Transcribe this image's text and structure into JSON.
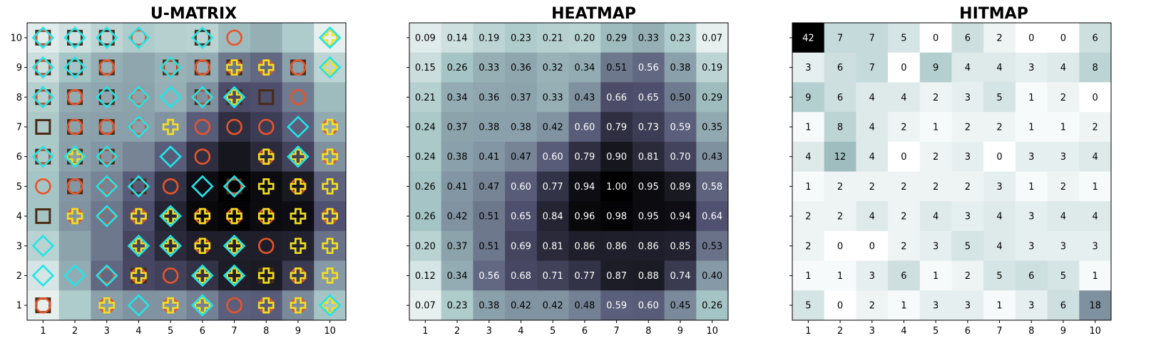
{
  "chart_data": [
    {
      "type": "heatmap",
      "title": "U-MATRIX",
      "x": [
        1,
        2,
        3,
        4,
        5,
        6,
        7,
        8,
        9,
        10
      ],
      "y": [
        1,
        2,
        3,
        4,
        5,
        6,
        7,
        8,
        9,
        10
      ],
      "colormap": "bone_r",
      "values_top_to_bottom": [
        [
          0.09,
          0.14,
          0.19,
          0.23,
          0.21,
          0.2,
          0.29,
          0.33,
          0.23,
          0.07
        ],
        [
          0.15,
          0.26,
          0.33,
          0.36,
          0.32,
          0.34,
          0.51,
          0.56,
          0.38,
          0.19
        ],
        [
          0.21,
          0.34,
          0.36,
          0.37,
          0.33,
          0.43,
          0.66,
          0.65,
          0.5,
          0.29
        ],
        [
          0.24,
          0.37,
          0.38,
          0.38,
          0.42,
          0.6,
          0.79,
          0.73,
          0.59,
          0.35
        ],
        [
          0.24,
          0.38,
          0.41,
          0.47,
          0.6,
          0.79,
          0.9,
          0.81,
          0.7,
          0.43
        ],
        [
          0.26,
          0.41,
          0.47,
          0.6,
          0.77,
          0.94,
          1.0,
          0.95,
          0.89,
          0.58
        ],
        [
          0.26,
          0.42,
          0.51,
          0.65,
          0.84,
          0.96,
          0.98,
          0.95,
          0.94,
          0.64
        ],
        [
          0.2,
          0.37,
          0.51,
          0.69,
          0.81,
          0.86,
          0.86,
          0.86,
          0.85,
          0.53
        ],
        [
          0.12,
          0.34,
          0.56,
          0.68,
          0.71,
          0.77,
          0.87,
          0.88,
          0.74,
          0.4
        ],
        [
          0.07,
          0.23,
          0.38,
          0.42,
          0.42,
          0.48,
          0.59,
          0.6,
          0.45,
          0.26
        ]
      ],
      "marker_types": {
        "s": {
          "shape": "square",
          "color": "#4a2a14"
        },
        "o": {
          "shape": "circle",
          "color": "#e8542a"
        },
        "d": {
          "shape": "diamond",
          "color": "#22e4e8"
        },
        "p": {
          "shape": "plus",
          "color": "#f5e020"
        }
      },
      "markers_top_to_bottom": [
        [
          "sod",
          "sd",
          "sd",
          "od",
          "",
          "osd",
          "o",
          "",
          "",
          "opd"
        ],
        [
          "sod",
          "sd",
          "so",
          "",
          "sod",
          "so",
          "sop",
          "op",
          "so",
          "opd"
        ],
        [
          "sod",
          "so",
          "sd",
          "od",
          "d",
          "sod",
          "sopd",
          "s",
          "o",
          ""
        ],
        [
          "s",
          "so",
          "so",
          "od",
          "p",
          "o",
          "o",
          "o",
          "d",
          "op"
        ],
        [
          "sod",
          "sopd",
          "sod",
          "",
          "d",
          "o",
          "",
          "op",
          "opd",
          "op"
        ],
        [
          "o",
          "so",
          "od",
          "sd",
          "o",
          "d",
          "sod",
          "p",
          "op",
          "p"
        ],
        [
          "s",
          "op",
          "od",
          "op",
          "opd",
          "op",
          "op",
          "op",
          "p",
          "op"
        ],
        [
          "d",
          "",
          "",
          "opd",
          "opd",
          "op",
          "opd",
          "o",
          "p",
          "p"
        ],
        [
          "d",
          "d",
          "od",
          "sop",
          "o",
          "opd",
          "pd",
          "sp",
          "op",
          "p"
        ],
        [
          "so",
          "",
          "op",
          "d",
          "op",
          "opd",
          "o",
          "op",
          "op",
          "opd"
        ]
      ]
    },
    {
      "type": "heatmap",
      "title": "HEATMAP",
      "x": [
        1,
        2,
        3,
        4,
        5,
        6,
        7,
        8,
        9,
        10
      ],
      "y": [
        1,
        2,
        3,
        4,
        5,
        6,
        7,
        8,
        9,
        10
      ],
      "colormap": "bone_r",
      "values_top_to_bottom": [
        [
          0.09,
          0.14,
          0.19,
          0.23,
          0.21,
          0.2,
          0.29,
          0.33,
          0.23,
          0.07
        ],
        [
          0.15,
          0.26,
          0.33,
          0.36,
          0.32,
          0.34,
          0.51,
          0.56,
          0.38,
          0.19
        ],
        [
          0.21,
          0.34,
          0.36,
          0.37,
          0.33,
          0.43,
          0.66,
          0.65,
          0.5,
          0.29
        ],
        [
          0.24,
          0.37,
          0.38,
          0.38,
          0.42,
          0.6,
          0.79,
          0.73,
          0.59,
          0.35
        ],
        [
          0.24,
          0.38,
          0.41,
          0.47,
          0.6,
          0.79,
          0.9,
          0.81,
          0.7,
          0.43
        ],
        [
          0.26,
          0.41,
          0.47,
          0.6,
          0.77,
          0.94,
          1.0,
          0.95,
          0.89,
          0.58
        ],
        [
          0.26,
          0.42,
          0.51,
          0.65,
          0.84,
          0.96,
          0.98,
          0.95,
          0.94,
          0.64
        ],
        [
          0.2,
          0.37,
          0.51,
          0.69,
          0.81,
          0.86,
          0.86,
          0.86,
          0.85,
          0.53
        ],
        [
          0.12,
          0.34,
          0.56,
          0.68,
          0.71,
          0.77,
          0.87,
          0.88,
          0.74,
          0.4
        ],
        [
          0.07,
          0.23,
          0.38,
          0.42,
          0.42,
          0.48,
          0.59,
          0.6,
          0.45,
          0.26
        ]
      ],
      "cell_labels": [
        "0.09",
        "0.14",
        "0.19",
        "0.23",
        "0.21",
        "0.20",
        "0.29",
        "0.33",
        "0.23",
        "0.07",
        "0.15",
        "0.26",
        "0.33",
        "0.36",
        "0.32",
        "0.34",
        "0.51",
        "0.56",
        "0.38",
        "0.19",
        "0.21",
        "0.34",
        "0.36",
        "0.37",
        "0.33",
        "0.43",
        "0.66",
        "0.65",
        "0.50",
        "0.29",
        "0.24",
        "0.37",
        "0.38",
        "0.38",
        "0.42",
        "0.60",
        "0.79",
        "0.73",
        "0.59",
        "0.35",
        "0.24",
        "0.38",
        "0.41",
        "0.47",
        "0.60",
        "0.79",
        "0.90",
        "0.81",
        "0.70",
        "0.43",
        "0.26",
        "0.41",
        "0.47",
        "0.60",
        "0.77",
        "0.94",
        "1.00",
        "0.95",
        "0.89",
        "0.58",
        "0.26",
        "0.42",
        "0.51",
        "0.65",
        "0.84",
        "0.96",
        "0.98",
        "0.95",
        "0.94",
        "0.64",
        "0.20",
        "0.37",
        "0.51",
        "0.69",
        "0.81",
        "0.86",
        "0.86",
        "0.86",
        "0.85",
        "0.53",
        "0.12",
        "0.34",
        "0.56",
        "0.68",
        "0.71",
        "0.77",
        "0.87",
        "0.88",
        "0.74",
        "0.40",
        "0.07",
        "0.23",
        "0.38",
        "0.42",
        "0.42",
        "0.48",
        "0.59",
        "0.60",
        "0.45",
        "0.26"
      ]
    },
    {
      "type": "heatmap",
      "title": "HITMAP",
      "x": [
        1,
        2,
        3,
        4,
        5,
        6,
        7,
        8,
        9,
        10
      ],
      "y": [
        1,
        2,
        3,
        4,
        5,
        6,
        7,
        8,
        9,
        10
      ],
      "colormap": "bone_r",
      "values_top_to_bottom": [
        [
          42,
          7,
          7,
          5,
          0,
          6,
          2,
          0,
          0,
          6
        ],
        [
          3,
          6,
          7,
          0,
          9,
          4,
          4,
          3,
          4,
          8
        ],
        [
          9,
          6,
          4,
          4,
          2,
          3,
          5,
          1,
          2,
          0
        ],
        [
          1,
          8,
          4,
          2,
          1,
          2,
          2,
          1,
          1,
          2
        ],
        [
          4,
          12,
          4,
          0,
          2,
          3,
          0,
          3,
          3,
          4
        ],
        [
          1,
          2,
          2,
          2,
          2,
          2,
          3,
          1,
          2,
          1
        ],
        [
          2,
          2,
          4,
          2,
          4,
          3,
          4,
          3,
          4,
          4
        ],
        [
          2,
          0,
          0,
          2,
          3,
          5,
          4,
          3,
          3,
          3
        ],
        [
          1,
          1,
          3,
          6,
          1,
          2,
          5,
          6,
          5,
          1
        ],
        [
          5,
          0,
          2,
          1,
          3,
          3,
          1,
          3,
          6,
          18
        ]
      ],
      "cell_labels": [
        "42",
        "7",
        "7",
        "5",
        "0",
        "6",
        "2",
        "0",
        "0",
        "6",
        "3",
        "6",
        "7",
        "0",
        "9",
        "4",
        "4",
        "3",
        "4",
        "8",
        "9",
        "6",
        "4",
        "4",
        "2",
        "3",
        "5",
        "1",
        "2",
        "0",
        "1",
        "8",
        "4",
        "2",
        "1",
        "2",
        "2",
        "1",
        "1",
        "2",
        "4",
        "12",
        "4",
        "0",
        "2",
        "3",
        "0",
        "3",
        "3",
        "4",
        "1",
        "2",
        "2",
        "2",
        "2",
        "2",
        "3",
        "1",
        "2",
        "1",
        "2",
        "2",
        "4",
        "2",
        "4",
        "3",
        "4",
        "3",
        "4",
        "4",
        "2",
        "0",
        "0",
        "2",
        "3",
        "5",
        "4",
        "3",
        "3",
        "3",
        "1",
        "1",
        "3",
        "6",
        "1",
        "2",
        "5",
        "6",
        "5",
        "1",
        "5",
        "0",
        "2",
        "1",
        "3",
        "3",
        "1",
        "3",
        "6",
        "18"
      ]
    }
  ],
  "x_tick_labels": [
    "1",
    "2",
    "3",
    "4",
    "5",
    "6",
    "7",
    "8",
    "9",
    "10"
  ],
  "y_tick_labels": [
    "1",
    "2",
    "3",
    "4",
    "5",
    "6",
    "7",
    "8",
    "9",
    "10"
  ]
}
